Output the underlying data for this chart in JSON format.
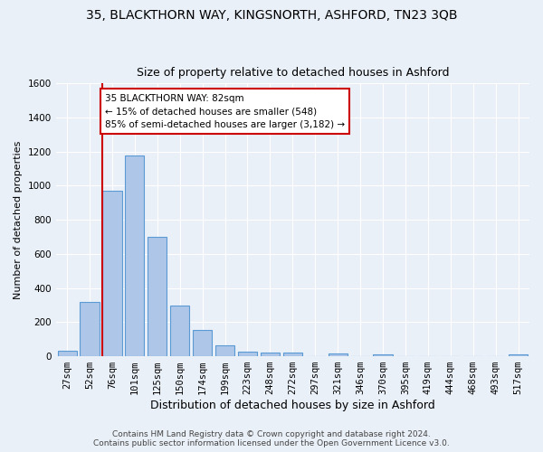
{
  "title": "35, BLACKTHORN WAY, KINGSNORTH, ASHFORD, TN23 3QB",
  "subtitle": "Size of property relative to detached houses in Ashford",
  "xlabel": "Distribution of detached houses by size in Ashford",
  "ylabel": "Number of detached properties",
  "footer_line1": "Contains HM Land Registry data © Crown copyright and database right 2024.",
  "footer_line2": "Contains public sector information licensed under the Open Government Licence v3.0.",
  "bar_labels": [
    "27sqm",
    "52sqm",
    "76sqm",
    "101sqm",
    "125sqm",
    "150sqm",
    "174sqm",
    "199sqm",
    "223sqm",
    "248sqm",
    "272sqm",
    "297sqm",
    "321sqm",
    "346sqm",
    "370sqm",
    "395sqm",
    "419sqm",
    "444sqm",
    "468sqm",
    "493sqm",
    "517sqm"
  ],
  "bar_values": [
    30,
    320,
    970,
    1180,
    700,
    300,
    155,
    65,
    25,
    20,
    20,
    0,
    15,
    0,
    12,
    0,
    0,
    0,
    0,
    0,
    12
  ],
  "bar_color": "#aec6e8",
  "bar_edge_color": "#5b9bd5",
  "highlight_x_label": "76sqm",
  "annotation_title": "35 BLACKTHORN WAY: 82sqm",
  "annotation_line1": "← 15% of detached houses are smaller (548)",
  "annotation_line2": "85% of semi-detached houses are larger (3,182) →",
  "annotation_box_color": "#ffffff",
  "annotation_box_edge_color": "#cc0000",
  "vline_color": "#cc0000",
  "ylim": [
    0,
    1600
  ],
  "yticks": [
    0,
    200,
    400,
    600,
    800,
    1000,
    1200,
    1400,
    1600
  ],
  "bg_color": "#eaf0f8",
  "grid_color": "#ffffff",
  "title_fontsize": 10,
  "subtitle_fontsize": 9,
  "xlabel_fontsize": 9,
  "ylabel_fontsize": 8,
  "tick_fontsize": 7.5,
  "footer_fontsize": 6.5
}
